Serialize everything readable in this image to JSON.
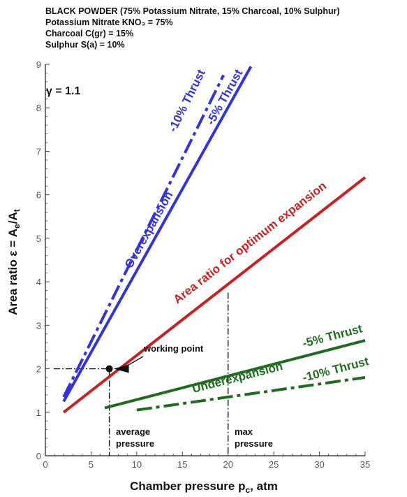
{
  "header": {
    "line1": "BLACK POWDER (75% Potassium Nitrate, 15% Charcoal, 10% Sulphur)",
    "line2": "Potassium Nitrate KNO₃ = 75%",
    "line3": "Charcoal C(gr) = 15%",
    "line4": "Sulphur S(a) = 10%"
  },
  "gamma_label": "γ = 1.1",
  "colors": {
    "blue": "#3333dd",
    "red": "#cc1f1f",
    "green": "#1f6b1f",
    "axis": "#444444"
  },
  "chart_data": {
    "type": "line",
    "xlabel": "Chamber pressure p",
    "xlabel_sub": "c",
    "xlabel_unit": ", atm",
    "ylabel": "Area ratio ε = A",
    "ylabel_sub1": "e",
    "ylabel_mid": "/A",
    "ylabel_sub2": "t",
    "xlim": [
      0,
      35
    ],
    "ylim": [
      0,
      9
    ],
    "x_ticks": [
      0,
      5,
      10,
      15,
      20,
      25,
      30,
      35
    ],
    "y_ticks": [
      0,
      1,
      2,
      3,
      4,
      5,
      6,
      7,
      8,
      9
    ],
    "series": [
      {
        "name": "-10% Thrust",
        "style": "dashdot",
        "color": "blue",
        "x": [
          2,
          19.5
        ],
        "y": [
          1.35,
          8.75
        ]
      },
      {
        "name": "-5% Thrust",
        "style": "solid",
        "color": "blue",
        "x": [
          2,
          22.5
        ],
        "y": [
          1.25,
          8.95
        ]
      },
      {
        "name": "Area ratio for optimum expansion",
        "style": "solid",
        "color": "red",
        "x": [
          2,
          35
        ],
        "y": [
          1.0,
          6.4
        ]
      },
      {
        "name": "-5% Thrust",
        "style": "solid",
        "color": "green",
        "x": [
          6.5,
          35
        ],
        "y": [
          1.1,
          2.65
        ]
      },
      {
        "name": "-10% Thrust",
        "style": "dashdot",
        "color": "green",
        "x": [
          10,
          35
        ],
        "y": [
          1.05,
          1.8
        ]
      }
    ],
    "annotations": {
      "overexpansion": "Overexpansion",
      "underexpansion": "Underexpansion",
      "blue_minus10": "-10% Thrust",
      "blue_minus5": "-5% Thrust",
      "red_label": "Area ratio for optimum expansion",
      "green_minus5": "-5% Thrust",
      "green_minus10": "-10% Thrust",
      "working_point_label": "working point",
      "average_pressure_1": "average",
      "average_pressure_2": "pressure",
      "max_pressure_1": "max",
      "max_pressure_2": "pressure"
    },
    "working_point": {
      "x": 7,
      "y": 2.0
    },
    "max_pressure": {
      "x": 20,
      "y": 3.75
    }
  }
}
